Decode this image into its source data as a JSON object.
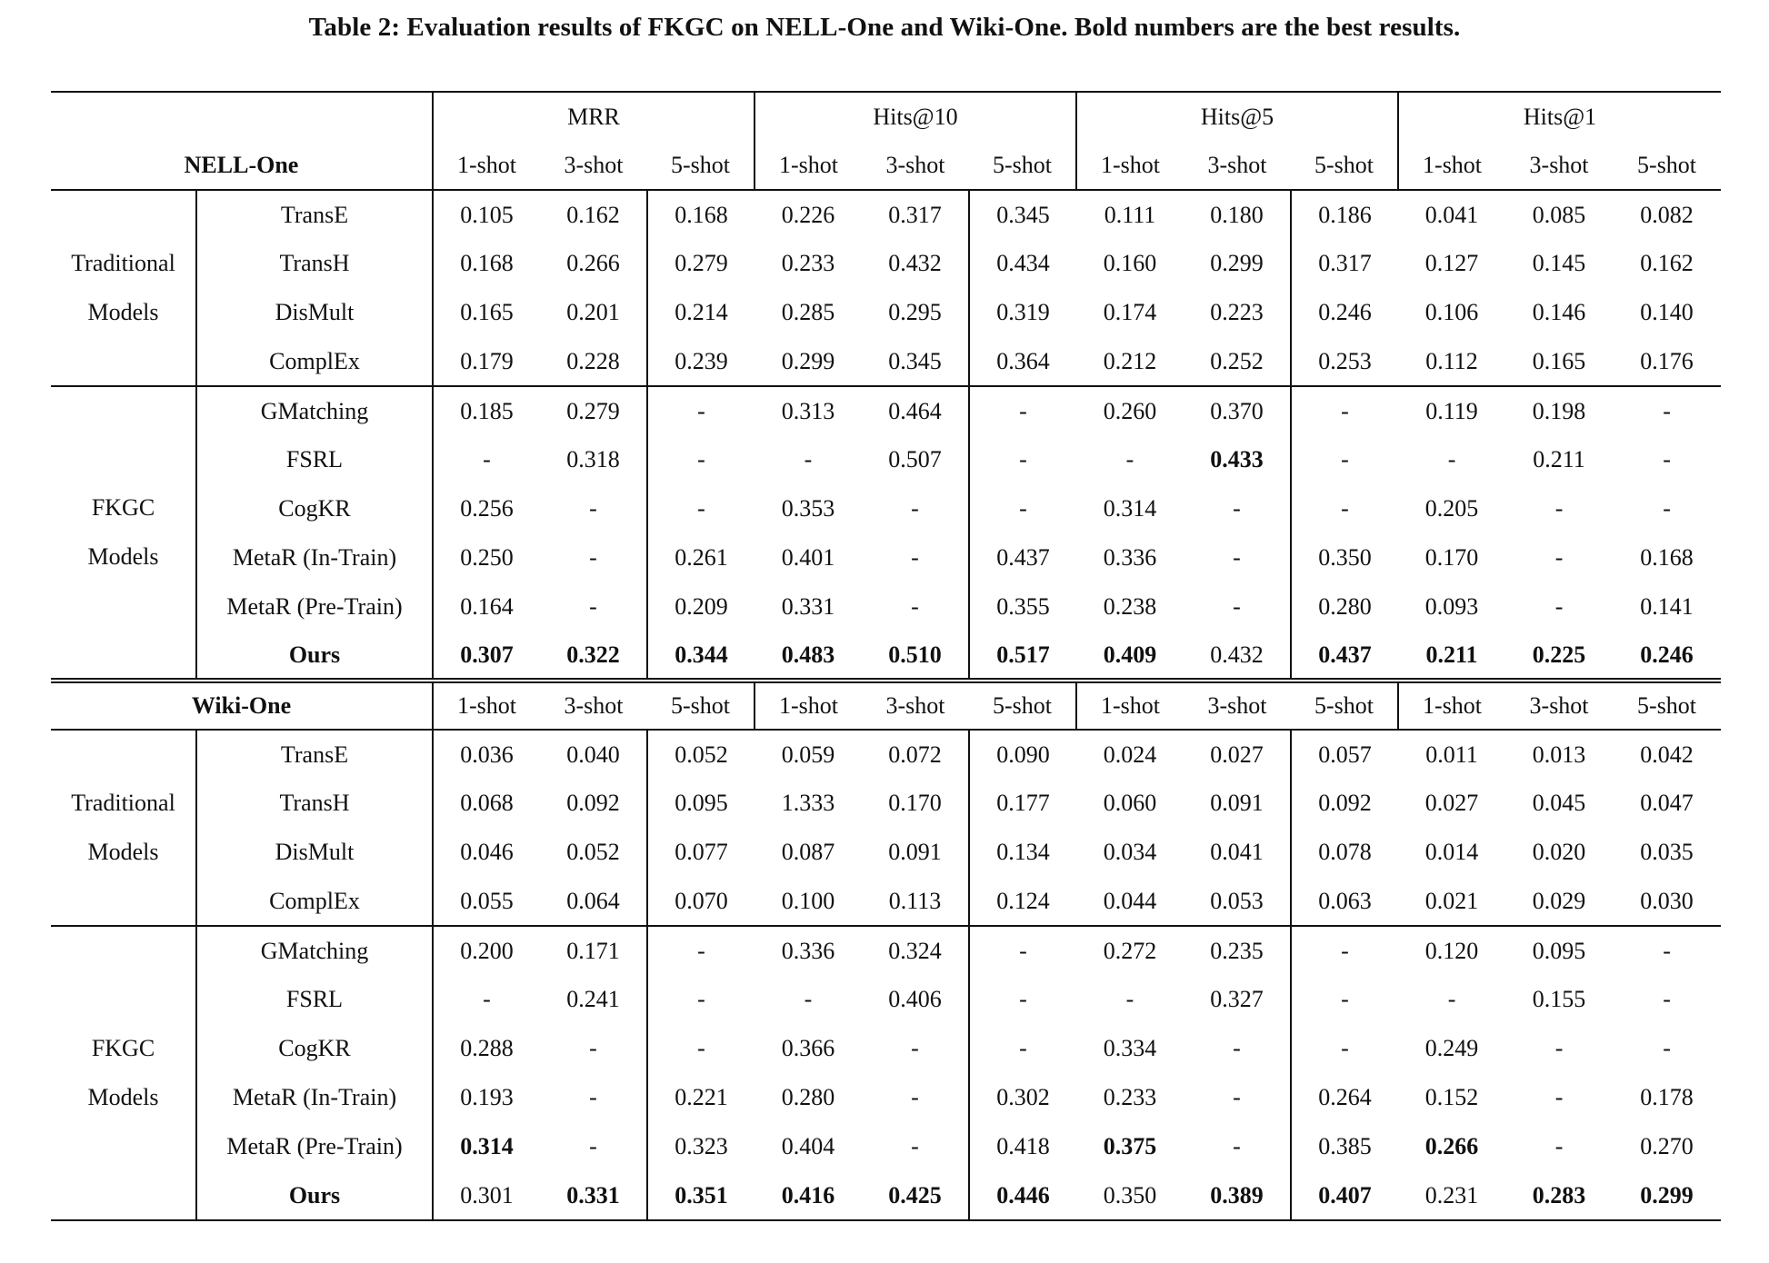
{
  "caption": "Table 2: Evaluation results of FKGC on NELL-One and Wiki-One. Bold numbers are the best results.",
  "metric_headers": [
    "MRR",
    "Hits@10",
    "Hits@5",
    "Hits@1"
  ],
  "shot_headers": [
    "1-shot",
    "3-shot",
    "5-shot"
  ],
  "sections": [
    {
      "dataset": "NELL-One",
      "groups": [
        {
          "label_lines": [
            "Traditional",
            "Models"
          ],
          "rows": [
            {
              "model": "TransE",
              "values": [
                "0.105",
                "0.162",
                "0.168",
                "0.226",
                "0.317",
                "0.345",
                "0.111",
                "0.180",
                "0.186",
                "0.041",
                "0.085",
                "0.082"
              ],
              "bold": []
            },
            {
              "model": "TransH",
              "values": [
                "0.168",
                "0.266",
                "0.279",
                "0.233",
                "0.432",
                "0.434",
                "0.160",
                "0.299",
                "0.317",
                "0.127",
                "0.145",
                "0.162"
              ],
              "bold": []
            },
            {
              "model": "DisMult",
              "values": [
                "0.165",
                "0.201",
                "0.214",
                "0.285",
                "0.295",
                "0.319",
                "0.174",
                "0.223",
                "0.246",
                "0.106",
                "0.146",
                "0.140"
              ],
              "bold": []
            },
            {
              "model": "ComplEx",
              "values": [
                "0.179",
                "0.228",
                "0.239",
                "0.299",
                "0.345",
                "0.364",
                "0.212",
                "0.252",
                "0.253",
                "0.112",
                "0.165",
                "0.176"
              ],
              "bold": []
            }
          ]
        },
        {
          "label_lines": [
            "FKGC",
            "Models"
          ],
          "rows": [
            {
              "model": "GMatching",
              "values": [
                "0.185",
                "0.279",
                "-",
                "0.313",
                "0.464",
                "-",
                "0.260",
                "0.370",
                "-",
                "0.119",
                "0.198",
                "-"
              ],
              "bold": []
            },
            {
              "model": "FSRL",
              "values": [
                "-",
                "0.318",
                "-",
                "-",
                "0.507",
                "-",
                "-",
                "0.433",
                "-",
                "-",
                "0.211",
                "-"
              ],
              "bold": [
                7
              ]
            },
            {
              "model": "CogKR",
              "values": [
                "0.256",
                "-",
                "-",
                "0.353",
                "-",
                "-",
                "0.314",
                "-",
                "-",
                "0.205",
                "-",
                "-"
              ],
              "bold": []
            },
            {
              "model": "MetaR (In-Train)",
              "values": [
                "0.250",
                "-",
                "0.261",
                "0.401",
                "-",
                "0.437",
                "0.336",
                "-",
                "0.350",
                "0.170",
                "-",
                "0.168"
              ],
              "bold": []
            },
            {
              "model": "MetaR (Pre-Train)",
              "values": [
                "0.164",
                "-",
                "0.209",
                "0.331",
                "-",
                "0.355",
                "0.238",
                "-",
                "0.280",
                "0.093",
                "-",
                "0.141"
              ],
              "bold": []
            },
            {
              "model": "Ours",
              "model_bold": true,
              "values": [
                "0.307",
                "0.322",
                "0.344",
                "0.483",
                "0.510",
                "0.517",
                "0.409",
                "0.432",
                "0.437",
                "0.211",
                "0.225",
                "0.246"
              ],
              "bold": [
                0,
                1,
                2,
                3,
                4,
                5,
                6,
                8,
                9,
                10,
                11
              ]
            }
          ]
        }
      ]
    },
    {
      "dataset": "Wiki-One",
      "groups": [
        {
          "label_lines": [
            "Traditional",
            "Models"
          ],
          "rows": [
            {
              "model": "TransE",
              "values": [
                "0.036",
                "0.040",
                "0.052",
                "0.059",
                "0.072",
                "0.090",
                "0.024",
                "0.027",
                "0.057",
                "0.011",
                "0.013",
                "0.042"
              ],
              "bold": []
            },
            {
              "model": "TransH",
              "values": [
                "0.068",
                "0.092",
                "0.095",
                "1.333",
                "0.170",
                "0.177",
                "0.060",
                "0.091",
                "0.092",
                "0.027",
                "0.045",
                "0.047"
              ],
              "bold": []
            },
            {
              "model": "DisMult",
              "values": [
                "0.046",
                "0.052",
                "0.077",
                "0.087",
                "0.091",
                "0.134",
                "0.034",
                "0.041",
                "0.078",
                "0.014",
                "0.020",
                "0.035"
              ],
              "bold": []
            },
            {
              "model": "ComplEx",
              "values": [
                "0.055",
                "0.064",
                "0.070",
                "0.100",
                "0.113",
                "0.124",
                "0.044",
                "0.053",
                "0.063",
                "0.021",
                "0.029",
                "0.030"
              ],
              "bold": []
            }
          ]
        },
        {
          "label_lines": [
            "FKGC",
            "Models"
          ],
          "rows": [
            {
              "model": "GMatching",
              "values": [
                "0.200",
                "0.171",
                "-",
                "0.336",
                "0.324",
                "-",
                "0.272",
                "0.235",
                "-",
                "0.120",
                "0.095",
                "-"
              ],
              "bold": []
            },
            {
              "model": "FSRL",
              "values": [
                "-",
                "0.241",
                "-",
                "-",
                "0.406",
                "-",
                "-",
                "0.327",
                "-",
                "-",
                "0.155",
                "-"
              ],
              "bold": []
            },
            {
              "model": "CogKR",
              "values": [
                "0.288",
                "-",
                "-",
                "0.366",
                "-",
                "-",
                "0.334",
                "-",
                "-",
                "0.249",
                "-",
                "-"
              ],
              "bold": []
            },
            {
              "model": "MetaR (In-Train)",
              "values": [
                "0.193",
                "-",
                "0.221",
                "0.280",
                "-",
                "0.302",
                "0.233",
                "-",
                "0.264",
                "0.152",
                "-",
                "0.178"
              ],
              "bold": []
            },
            {
              "model": "MetaR (Pre-Train)",
              "values": [
                "0.314",
                "-",
                "0.323",
                "0.404",
                "-",
                "0.418",
                "0.375",
                "-",
                "0.385",
                "0.266",
                "-",
                "0.270"
              ],
              "bold": [
                0,
                6,
                9
              ]
            },
            {
              "model": "Ours",
              "model_bold": true,
              "values": [
                "0.301",
                "0.331",
                "0.351",
                "0.416",
                "0.425",
                "0.446",
                "0.350",
                "0.389",
                "0.407",
                "0.231",
                "0.283",
                "0.299"
              ],
              "bold": [
                1,
                2,
                3,
                4,
                5,
                7,
                8,
                10,
                11
              ]
            }
          ]
        }
      ]
    }
  ]
}
